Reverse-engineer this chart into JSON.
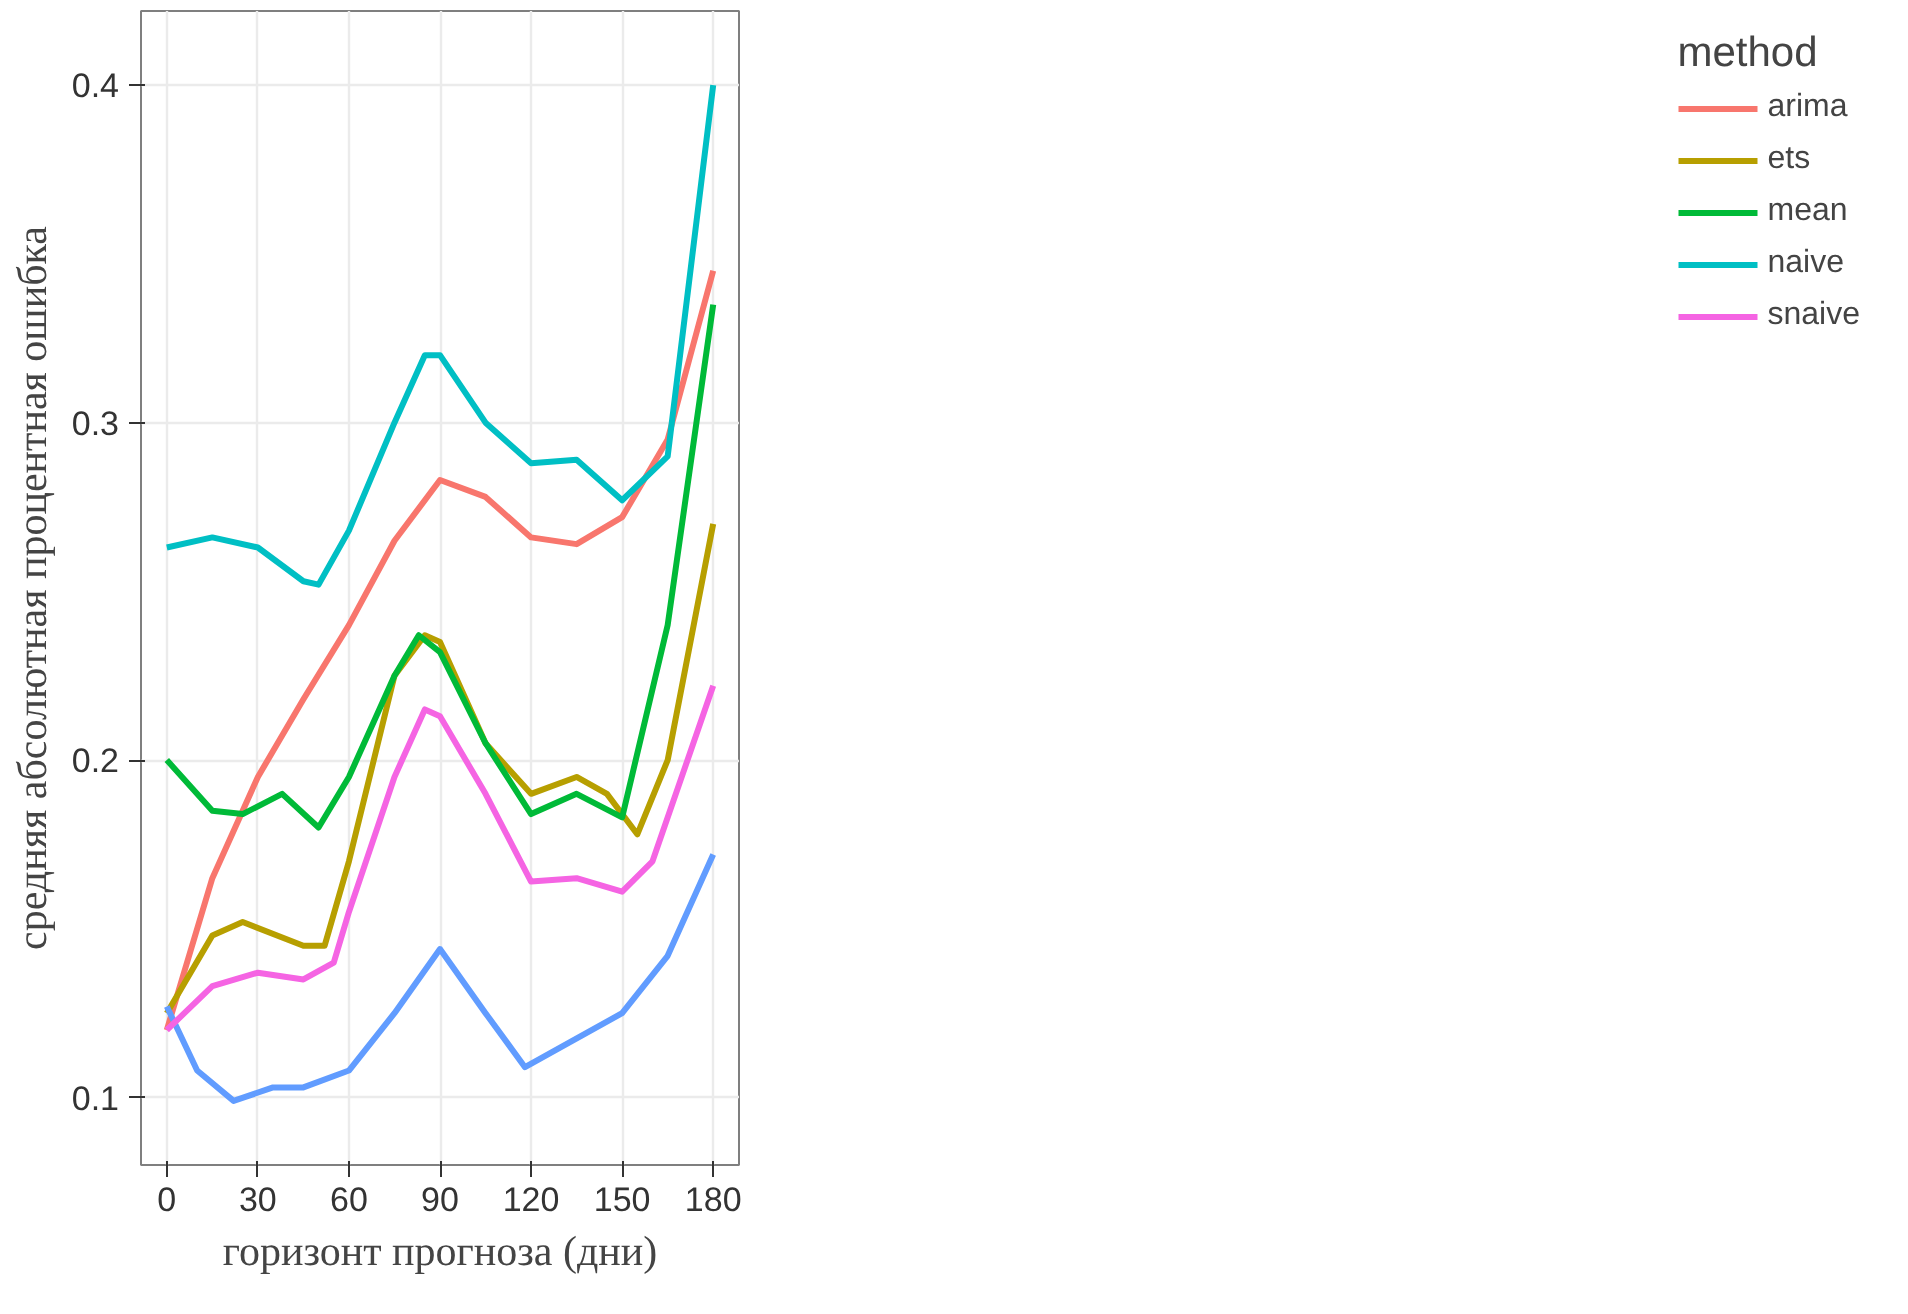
{
  "chart_data": {
    "type": "line",
    "xlabel": "горизонт прогноза (дни)",
    "ylabel": "средняя абсолютная процентная ошибка",
    "legend_title": "method",
    "xlim": [
      -8.5,
      188.5
    ],
    "ylim": [
      0.08,
      0.422
    ],
    "xticks": [
      0,
      30,
      60,
      90,
      120,
      150,
      180
    ],
    "yticks": [
      0.1,
      0.2,
      0.3,
      0.4
    ],
    "grid": true,
    "legend": "right",
    "marker": "none",
    "line_style": "solid",
    "series": [
      {
        "name": "arima",
        "color": "#f8766d",
        "x": [
          0,
          15,
          30,
          45,
          60,
          75,
          90,
          105,
          120,
          135,
          150,
          165,
          180
        ],
        "values": [
          0.12,
          0.165,
          0.195,
          0.218,
          0.24,
          0.265,
          0.283,
          0.278,
          0.266,
          0.264,
          0.272,
          0.295,
          0.345
        ]
      },
      {
        "name": "ets",
        "color": "#b79f00",
        "x": [
          0,
          15,
          25,
          45,
          52,
          60,
          75,
          85,
          90,
          105,
          120,
          135,
          145,
          155,
          165,
          180
        ],
        "values": [
          0.125,
          0.148,
          0.152,
          0.145,
          0.145,
          0.17,
          0.225,
          0.237,
          0.235,
          0.205,
          0.19,
          0.195,
          0.19,
          0.178,
          0.2,
          0.27
        ]
      },
      {
        "name": "mean",
        "color": "#00ba38",
        "x": [
          0,
          15,
          25,
          38,
          50,
          60,
          75,
          83,
          90,
          105,
          120,
          135,
          150,
          165,
          180
        ],
        "values": [
          0.2,
          0.185,
          0.184,
          0.19,
          0.18,
          0.195,
          0.225,
          0.237,
          0.232,
          0.205,
          0.184,
          0.19,
          0.183,
          0.24,
          0.335
        ]
      },
      {
        "name": "naive",
        "color": "#00bfc4",
        "x": [
          0,
          15,
          30,
          45,
          50,
          60,
          75,
          85,
          90,
          105,
          120,
          135,
          150,
          165,
          180
        ],
        "values": [
          0.263,
          0.266,
          0.263,
          0.253,
          0.252,
          0.268,
          0.3,
          0.32,
          0.32,
          0.3,
          0.288,
          0.289,
          0.277,
          0.29,
          0.4
        ]
      },
      {
        "color": "#619cff",
        "x": [
          0,
          10,
          22,
          35,
          45,
          60,
          75,
          90,
          105,
          118,
          130,
          150,
          165,
          180
        ],
        "values": [
          0.127,
          0.108,
          0.099,
          0.103,
          0.103,
          0.108,
          0.125,
          0.144,
          0.125,
          0.109,
          0.115,
          0.125,
          0.142,
          0.172
        ]
      },
      {
        "name": "snaive",
        "color": "#f564e3",
        "x": [
          0,
          15,
          30,
          45,
          55,
          60,
          75,
          85,
          90,
          105,
          120,
          135,
          150,
          160,
          180
        ],
        "values": [
          0.12,
          0.133,
          0.137,
          0.135,
          0.14,
          0.155,
          0.195,
          0.215,
          0.213,
          0.19,
          0.164,
          0.165,
          0.161,
          0.17,
          0.222
        ]
      }
    ]
  }
}
